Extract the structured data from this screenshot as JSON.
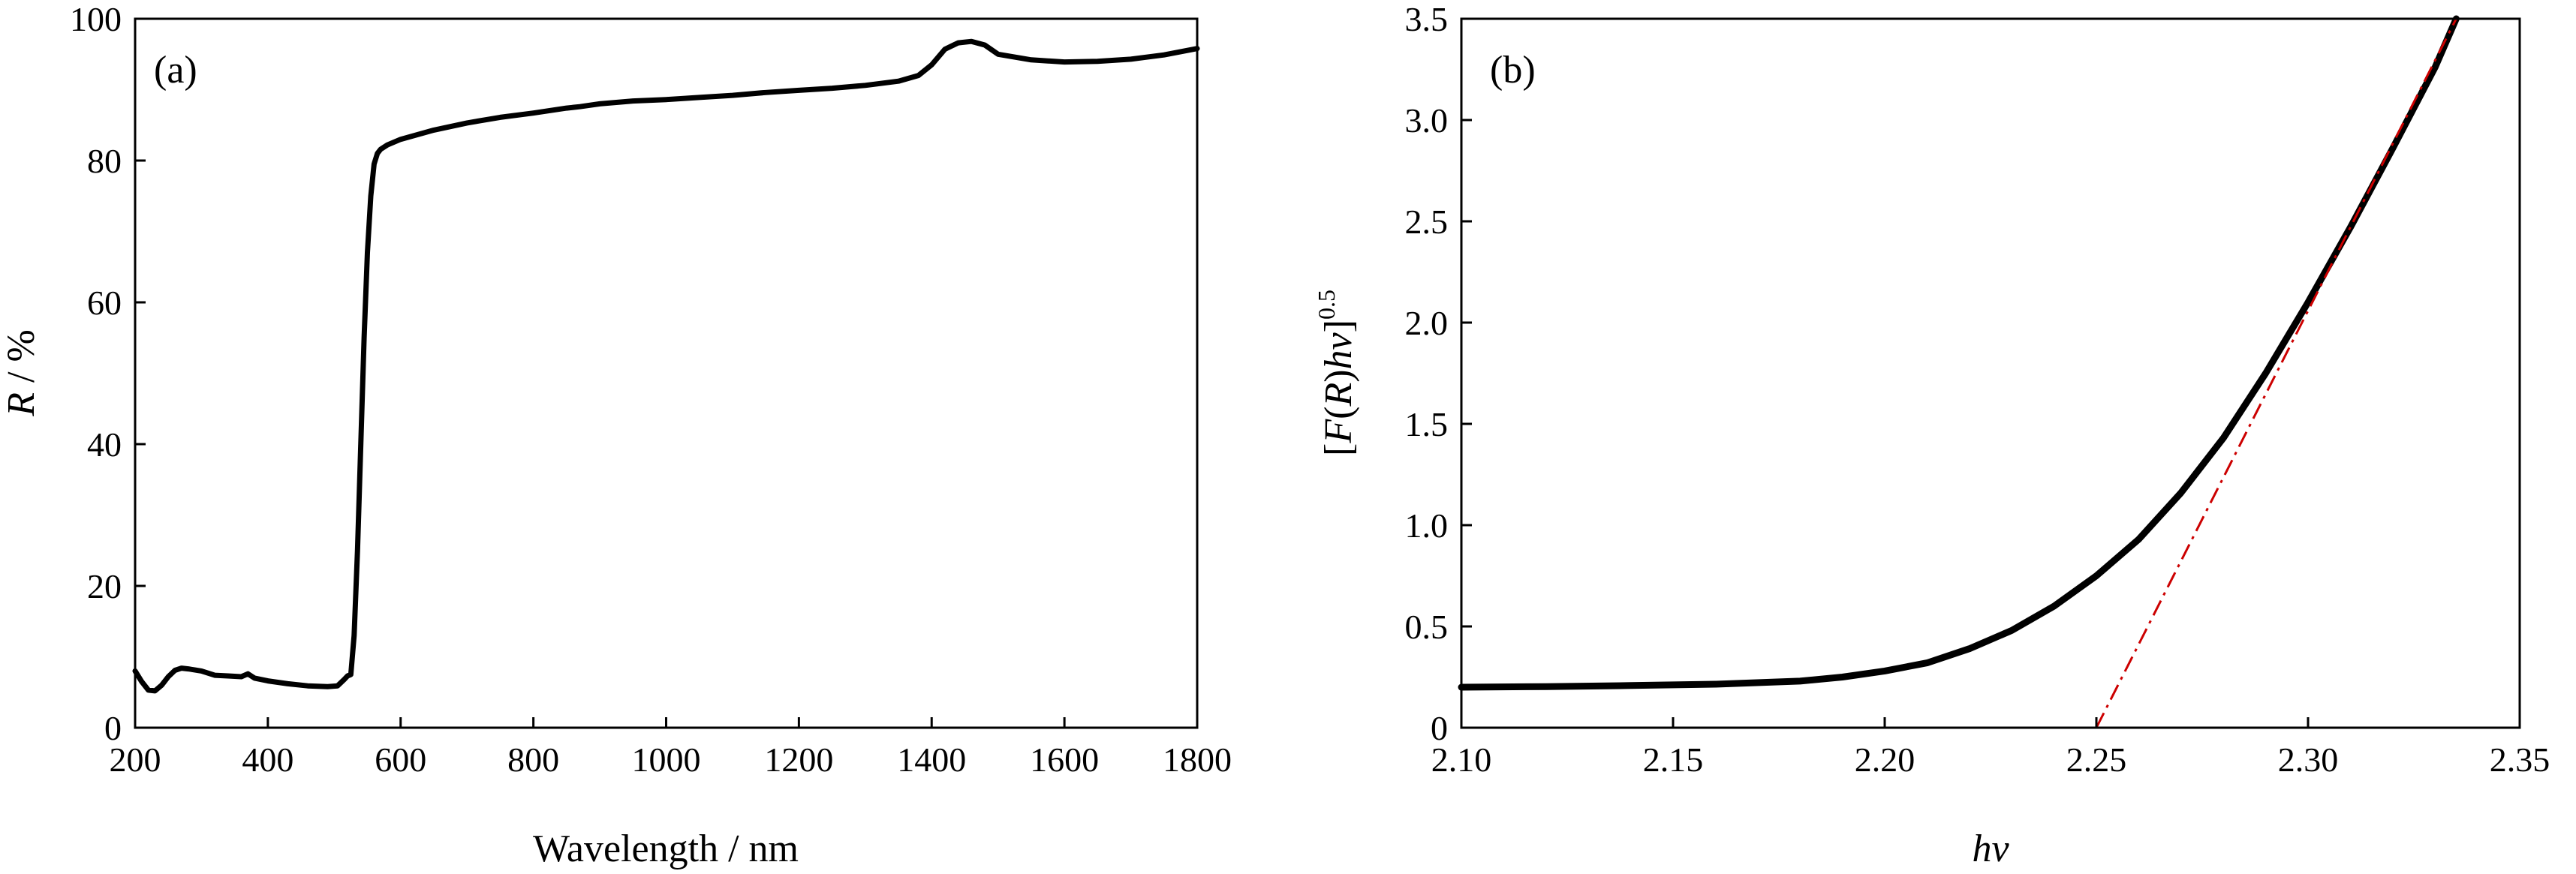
{
  "chart_data": [
    {
      "type": "line",
      "panel_label": "(a)",
      "xlabel": "Wavelength / nm",
      "ylabel_main": "R",
      "ylabel_rest": " / %",
      "xlim": [
        200,
        1800
      ],
      "ylim": [
        0,
        100
      ],
      "xticks": [
        200,
        400,
        600,
        800,
        1000,
        1200,
        1400,
        1600,
        1800
      ],
      "yticks": [
        0,
        20,
        40,
        60,
        80,
        100
      ],
      "grid": false,
      "line_color": "#000000",
      "series": [
        {
          "x": [
            200,
            210,
            220,
            230,
            240,
            250,
            260,
            270,
            280,
            300,
            320,
            340,
            360,
            370,
            380,
            400,
            430,
            460,
            490,
            505,
            515,
            520,
            525,
            530,
            535,
            540,
            545,
            550,
            555,
            560,
            565,
            570,
            580,
            600,
            650,
            700,
            750,
            800,
            850,
            870,
            900,
            950,
            1000,
            1050,
            1100,
            1150,
            1200,
            1250,
            1300,
            1350,
            1380,
            1400,
            1420,
            1440,
            1460,
            1480,
            1500,
            1550,
            1600,
            1650,
            1700,
            1750,
            1800
          ],
          "y": [
            8.0,
            6.5,
            5.3,
            5.2,
            6.0,
            7.2,
            8.1,
            8.4,
            8.3,
            8.0,
            7.4,
            7.3,
            7.2,
            7.6,
            7.0,
            6.6,
            6.2,
            5.9,
            5.8,
            5.9,
            6.8,
            7.3,
            7.5,
            13.0,
            25.0,
            40.0,
            55.0,
            67.0,
            75.0,
            79.5,
            81.0,
            81.6,
            82.2,
            83.0,
            84.3,
            85.3,
            86.1,
            86.7,
            87.4,
            87.6,
            88.0,
            88.4,
            88.6,
            88.9,
            89.2,
            89.6,
            89.9,
            90.2,
            90.6,
            91.2,
            92.0,
            93.5,
            95.7,
            96.6,
            96.8,
            96.3,
            95.0,
            94.2,
            93.9,
            94.0,
            94.3,
            94.9,
            95.8
          ]
        }
      ]
    },
    {
      "type": "line",
      "panel_label": "(b)",
      "xlabel": "hv",
      "ylabel_parts": [
        "[",
        "F",
        "(",
        "R",
        ")",
        "hv",
        "]",
        "0.5"
      ],
      "xlim": [
        2.1,
        2.35
      ],
      "ylim": [
        0,
        3.5
      ],
      "xticks": [
        2.1,
        2.15,
        2.2,
        2.25,
        2.3,
        2.35
      ],
      "xtick_labels": [
        "2.10",
        "2.15",
        "2.20",
        "2.25",
        "2.30",
        "2.35"
      ],
      "yticks": [
        0,
        0.5,
        1.0,
        1.5,
        2.0,
        2.5,
        3.0,
        3.5
      ],
      "ytick_labels": [
        "0",
        "0.5",
        "1.0",
        "1.5",
        "2.0",
        "2.5",
        "3.0",
        "3.5"
      ],
      "grid": false,
      "line_color": "#000000",
      "fit_color": "#cc0000",
      "series": [
        {
          "x": [
            2.1,
            2.12,
            2.14,
            2.16,
            2.18,
            2.19,
            2.2,
            2.21,
            2.22,
            2.23,
            2.24,
            2.25,
            2.26,
            2.27,
            2.28,
            2.29,
            2.3,
            2.31,
            2.32,
            2.33,
            2.335
          ],
          "y": [
            0.2,
            0.203,
            0.208,
            0.215,
            0.23,
            0.25,
            0.28,
            0.32,
            0.39,
            0.48,
            0.6,
            0.75,
            0.93,
            1.16,
            1.43,
            1.75,
            2.1,
            2.47,
            2.86,
            3.26,
            3.5
          ]
        }
      ],
      "fit_line": {
        "x": [
          2.25,
          2.335
        ],
        "y": [
          0,
          3.5
        ]
      }
    }
  ]
}
